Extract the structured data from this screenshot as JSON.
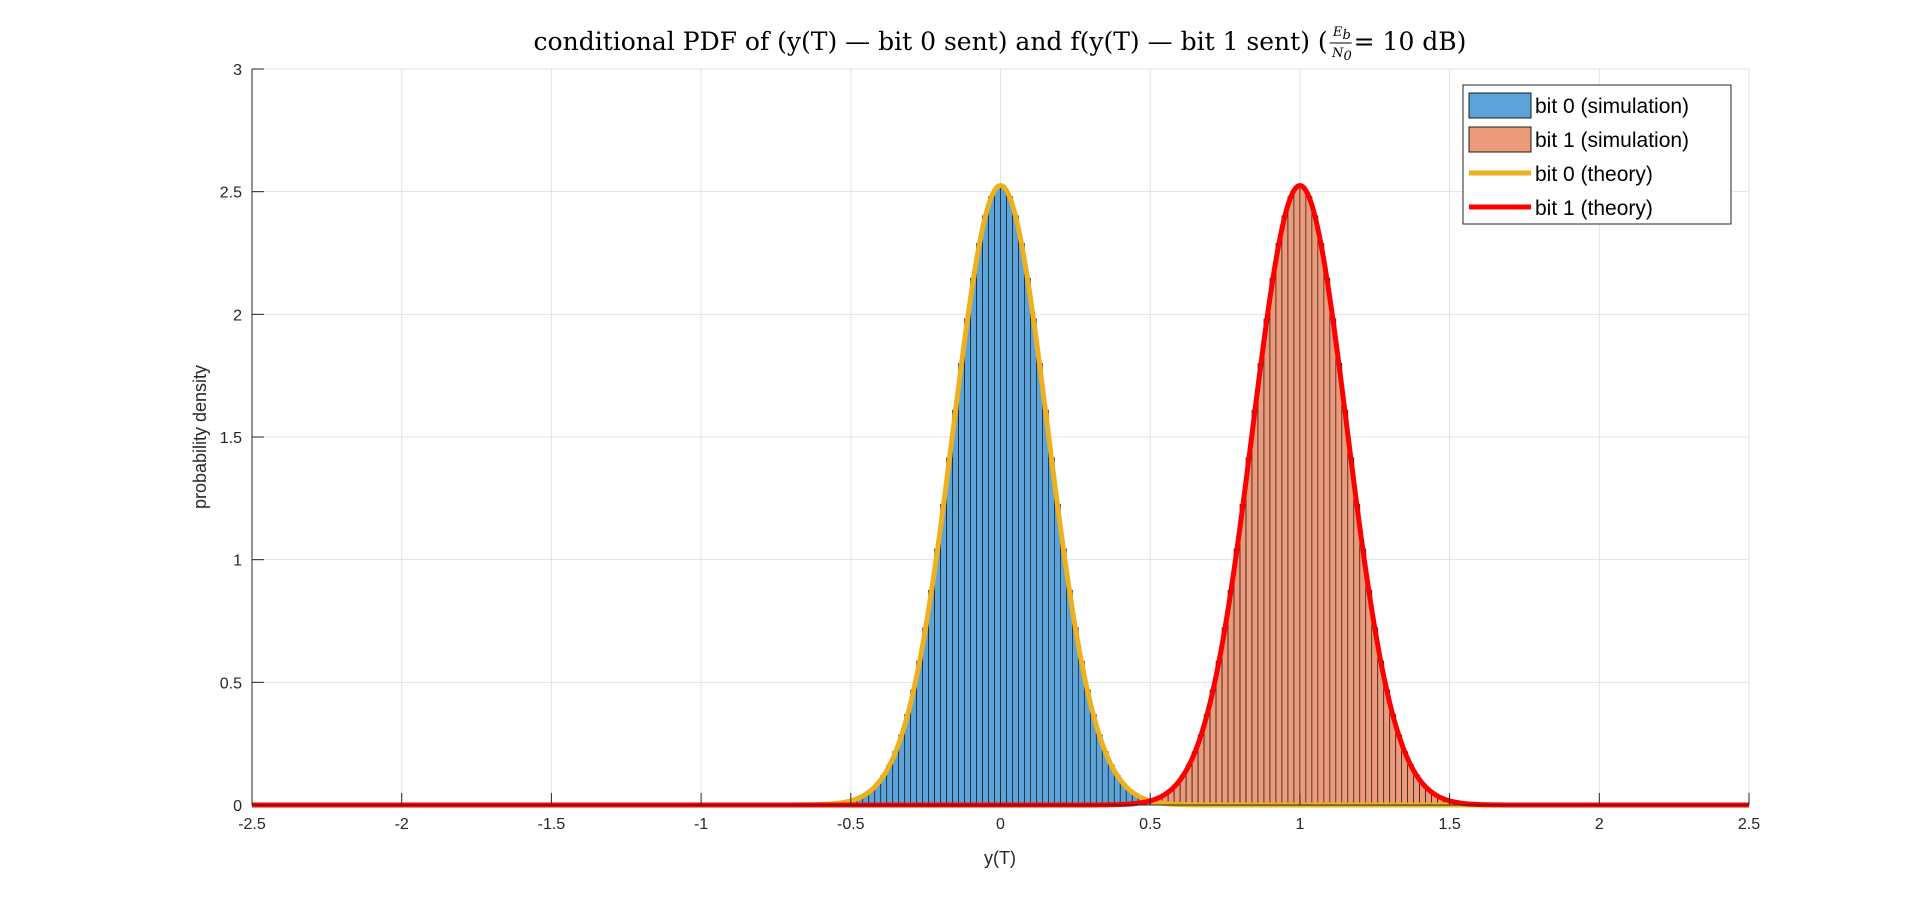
{
  "chart_data": {
    "type": "bar",
    "title": {
      "prefix": "conditional PDF of (y(T) — bit 0 sent) and f(y(T) — bit 1 sent) (",
      "frac_num": "E",
      "frac_num_sub": "b",
      "frac_den": "N",
      "frac_den_sub": "0",
      "suffix": " = 10 dB)"
    },
    "xlabel": "y(T)",
    "ylabel": "probability density",
    "xlim": [
      -2.5,
      2.5
    ],
    "ylim": [
      0,
      3
    ],
    "xticks": [
      "-2.5",
      "-2",
      "-1.5",
      "-1",
      "-0.5",
      "0",
      "0.5",
      "1",
      "1.5",
      "2",
      "2.5"
    ],
    "yticks": [
      "0",
      "0.5",
      "1",
      "1.5",
      "2",
      "2.5",
      "3"
    ],
    "grid": true,
    "legend_position": "top-right",
    "bin_width": 0.02,
    "series": [
      {
        "name": "bit 0 (simulation)",
        "kind": "histogram",
        "color": "#5ba3d8",
        "mean": 0.0,
        "sigma": 0.158,
        "x_range": [
          -0.52,
          0.56
        ]
      },
      {
        "name": "bit 1 (simulation)",
        "kind": "histogram",
        "color": "#ed9a7b",
        "mean": 1.0,
        "sigma": 0.158,
        "x_range": [
          0.44,
          1.56
        ]
      },
      {
        "name": "bit 0 (theory)",
        "kind": "line",
        "color": "#edb120",
        "mean": 0.0,
        "sigma": 0.158
      },
      {
        "name": "bit 1 (theory)",
        "kind": "line",
        "color": "#ff0000",
        "mean": 1.0,
        "sigma": 0.158
      }
    ]
  }
}
